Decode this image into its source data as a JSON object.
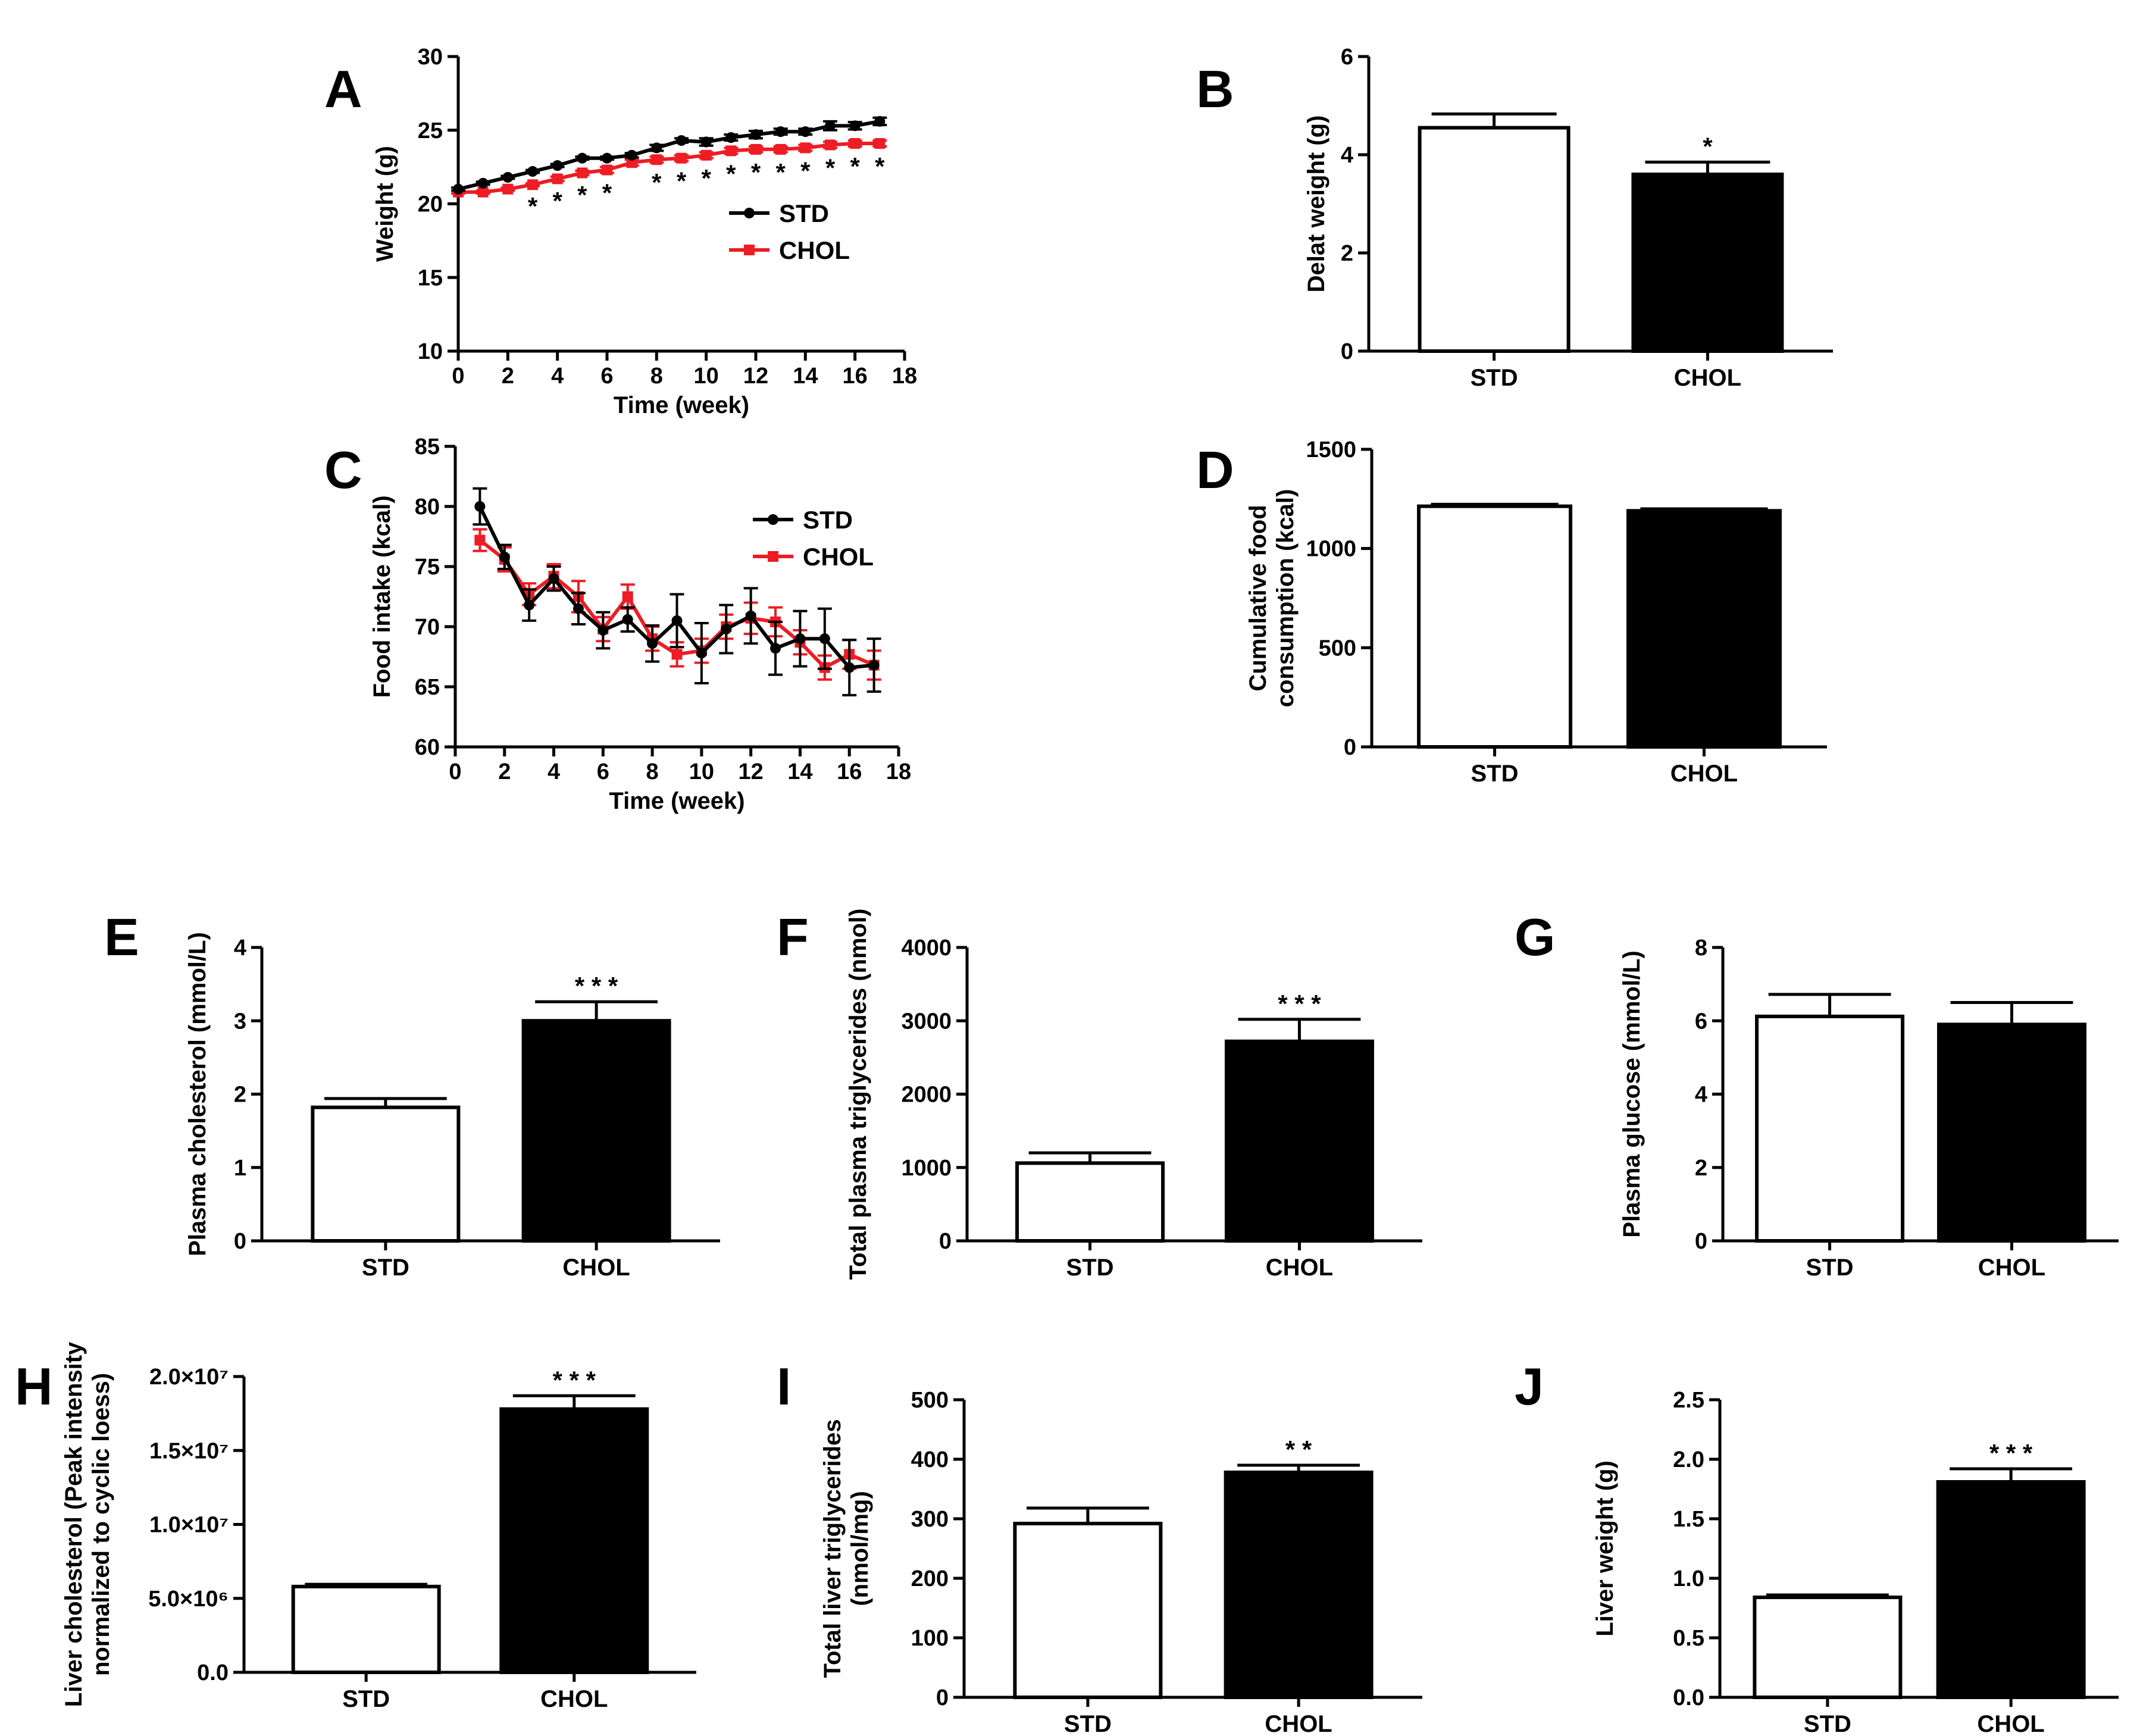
{
  "colors": {
    "std": "#000000",
    "chol": "#ee1c24",
    "std_fill": "#ffffff",
    "chol_fill": "#000000"
  },
  "chart_data": [
    {
      "id": "A",
      "type": "line",
      "letter": "A",
      "xlabel": "Time (week)",
      "ylabel": "Weight (g)",
      "xlim": [
        0,
        18
      ],
      "ylim": [
        10,
        30
      ],
      "xticks": [
        "0",
        "2",
        "4",
        "6",
        "8",
        "10",
        "12",
        "14",
        "16",
        "18"
      ],
      "yticks": [
        "10",
        "15",
        "20",
        "25",
        "30"
      ],
      "legend": [
        "STD",
        "CHOL"
      ],
      "series": [
        {
          "name": "STD",
          "x": [
            0,
            1,
            2,
            3,
            4,
            5,
            6,
            7,
            8,
            9,
            10,
            11,
            12,
            13,
            14,
            15,
            16,
            17
          ],
          "values": [
            21.0,
            21.4,
            21.8,
            22.2,
            22.6,
            23.1,
            23.1,
            23.3,
            23.8,
            24.3,
            24.2,
            24.5,
            24.7,
            24.9,
            24.9,
            25.3,
            25.3,
            25.6
          ],
          "errors": [
            0.1,
            0.1,
            0.1,
            0.1,
            0.1,
            0.1,
            0.1,
            0.15,
            0.2,
            0.15,
            0.25,
            0.2,
            0.25,
            0.2,
            0.2,
            0.3,
            0.25,
            0.25
          ]
        },
        {
          "name": "CHOL",
          "x": [
            0,
            1,
            2,
            3,
            4,
            5,
            6,
            7,
            8,
            9,
            10,
            11,
            12,
            13,
            14,
            15,
            16,
            17
          ],
          "values": [
            20.8,
            20.8,
            21.0,
            21.3,
            21.7,
            22.1,
            22.3,
            22.8,
            23.0,
            23.1,
            23.3,
            23.6,
            23.7,
            23.7,
            23.8,
            24.0,
            24.1,
            24.1
          ],
          "errors": [
            0.1,
            0.1,
            0.1,
            0.1,
            0.15,
            0.15,
            0.2,
            0.2,
            0.2,
            0.2,
            0.2,
            0.2,
            0.2,
            0.2,
            0.2,
            0.2,
            0.2,
            0.2
          ]
        }
      ],
      "annotations": [
        {
          "x": 3,
          "text": "*"
        },
        {
          "x": 4,
          "text": "*"
        },
        {
          "x": 5,
          "text": "*"
        },
        {
          "x": 6,
          "text": "*"
        },
        {
          "x": 8,
          "text": "*"
        },
        {
          "x": 9,
          "text": "*"
        },
        {
          "x": 10,
          "text": "*"
        },
        {
          "x": 11,
          "text": "*"
        },
        {
          "x": 12,
          "text": "*"
        },
        {
          "x": 13,
          "text": "*"
        },
        {
          "x": 14,
          "text": "*"
        },
        {
          "x": 15,
          "text": "*"
        },
        {
          "x": 16,
          "text": "*"
        },
        {
          "x": 17,
          "text": "*"
        }
      ]
    },
    {
      "id": "B",
      "type": "bar",
      "letter": "B",
      "ylabel": "Delat weight (g)",
      "ylim": [
        0,
        6
      ],
      "yticks": [
        "0",
        "2",
        "4",
        "6"
      ],
      "categories": [
        "STD",
        "CHOL"
      ],
      "values": [
        4.55,
        3.6
      ],
      "errors": [
        0.28,
        0.25
      ],
      "annotations": [
        "",
        "*"
      ]
    },
    {
      "id": "C",
      "type": "line",
      "letter": "C",
      "xlabel": "Time (week)",
      "ylabel": "Food intake (kcal)",
      "xlim": [
        0,
        18
      ],
      "ylim": [
        60,
        85
      ],
      "xticks": [
        "0",
        "2",
        "4",
        "6",
        "8",
        "10",
        "12",
        "14",
        "16",
        "18"
      ],
      "yticks": [
        "60",
        "65",
        "70",
        "75",
        "80",
        "85"
      ],
      "legend": [
        "STD",
        "CHOL"
      ],
      "series": [
        {
          "name": "STD",
          "x": [
            1,
            2,
            3,
            4,
            5,
            6,
            7,
            8,
            9,
            10,
            11,
            12,
            13,
            14,
            15,
            16,
            17
          ],
          "values": [
            80.0,
            75.8,
            71.8,
            74.0,
            71.5,
            69.7,
            70.6,
            68.6,
            70.5,
            67.8,
            69.8,
            70.9,
            68.2,
            69.0,
            69.0,
            66.6,
            66.8
          ],
          "errors": [
            1.5,
            1.0,
            1.3,
            1.0,
            1.3,
            1.5,
            1.0,
            1.5,
            2.2,
            2.5,
            2.0,
            2.3,
            2.2,
            2.3,
            2.5,
            2.3,
            2.2
          ]
        },
        {
          "name": "CHOL",
          "x": [
            1,
            2,
            3,
            4,
            5,
            6,
            7,
            8,
            9,
            10,
            11,
            12,
            13,
            14,
            15,
            16,
            17
          ],
          "values": [
            77.2,
            75.6,
            72.7,
            74.2,
            72.5,
            69.8,
            72.5,
            69.0,
            67.7,
            68.0,
            70.0,
            70.7,
            70.4,
            68.7,
            66.6,
            67.7,
            66.8
          ],
          "errors": [
            0.9,
            1.0,
            0.9,
            1.0,
            1.3,
            1.0,
            1.0,
            1.0,
            1.0,
            1.0,
            1.0,
            1.3,
            1.2,
            1.0,
            1.0,
            1.2,
            1.2
          ]
        }
      ]
    },
    {
      "id": "D",
      "type": "bar",
      "letter": "D",
      "ylabel": "Cumulative food consumption (kcal)",
      "ylabel_lines": [
        "Cumulative food",
        "consumption (kcal)"
      ],
      "ylim": [
        0,
        1500
      ],
      "yticks": [
        "0",
        "500",
        "1000",
        "1500"
      ],
      "categories": [
        "STD",
        "CHOL"
      ],
      "values": [
        1213,
        1190
      ],
      "errors": [
        10,
        10
      ],
      "annotations": [
        "",
        ""
      ]
    },
    {
      "id": "E",
      "type": "bar",
      "letter": "E",
      "ylabel": "Plasma cholesterol (mmol/L)",
      "ylim": [
        0,
        4
      ],
      "yticks": [
        "0",
        "1",
        "2",
        "3",
        "4"
      ],
      "categories": [
        "STD",
        "CHOL"
      ],
      "values": [
        1.82,
        3.0
      ],
      "errors": [
        0.12,
        0.26
      ],
      "annotations": [
        "",
        "***"
      ]
    },
    {
      "id": "F",
      "type": "bar",
      "letter": "F",
      "ylabel": "Total plasma triglycerides (nmol)",
      "ylim": [
        0,
        4000
      ],
      "yticks": [
        "0",
        "1000",
        "2000",
        "3000",
        "4000"
      ],
      "categories": [
        "STD",
        "CHOL"
      ],
      "values": [
        1060,
        2720
      ],
      "errors": [
        140,
        300
      ],
      "annotations": [
        "",
        "***"
      ]
    },
    {
      "id": "G",
      "type": "bar",
      "letter": "G",
      "ylabel": "Plasma glucose (mmol/L)",
      "ylim": [
        0,
        8
      ],
      "yticks": [
        "0",
        "2",
        "4",
        "6",
        "8"
      ],
      "categories": [
        "STD",
        "CHOL"
      ],
      "values": [
        6.12,
        5.9
      ],
      "errors": [
        0.6,
        0.6
      ],
      "annotations": [
        "",
        ""
      ]
    },
    {
      "id": "H",
      "type": "bar",
      "letter": "H",
      "ylabel": "Liver cholesterol (Peak intensity normalized to cyclic loess)",
      "ylabel_lines": [
        "Liver cholesterol (Peak intensity",
        "normalized to cyclic loess)"
      ],
      "ylim": [
        0,
        20000000
      ],
      "yticks": [
        "0.0",
        "5.0×10⁶",
        "1.0×10⁷",
        "1.5×10⁷",
        "2.0×10⁷"
      ],
      "categories": [
        "STD",
        "CHOL"
      ],
      "values": [
        5800000,
        17800000
      ],
      "errors": [
        150000,
        900000
      ],
      "annotations": [
        "",
        "***"
      ]
    },
    {
      "id": "I",
      "type": "bar",
      "letter": "I",
      "ylabel": "Total liver triglycerides (nmol/mg)",
      "ylabel_lines": [
        "Total liver triglycerides",
        "(nmol/mg)"
      ],
      "ylim": [
        0,
        500
      ],
      "yticks": [
        "0",
        "100",
        "200",
        "300",
        "400",
        "500"
      ],
      "categories": [
        "STD",
        "CHOL"
      ],
      "values": [
        292,
        378
      ],
      "errors": [
        26,
        12
      ],
      "annotations": [
        "",
        "**"
      ]
    },
    {
      "id": "J",
      "type": "bar",
      "letter": "J",
      "ylabel": "Liver weight (g)",
      "ylim": [
        0,
        2.5
      ],
      "yticks": [
        "0.0",
        "0.5",
        "1.0",
        "1.5",
        "2.0",
        "2.5"
      ],
      "categories": [
        "STD",
        "CHOL"
      ],
      "values": [
        0.84,
        1.81
      ],
      "errors": [
        0.02,
        0.11
      ],
      "annotations": [
        "",
        "***"
      ]
    }
  ]
}
